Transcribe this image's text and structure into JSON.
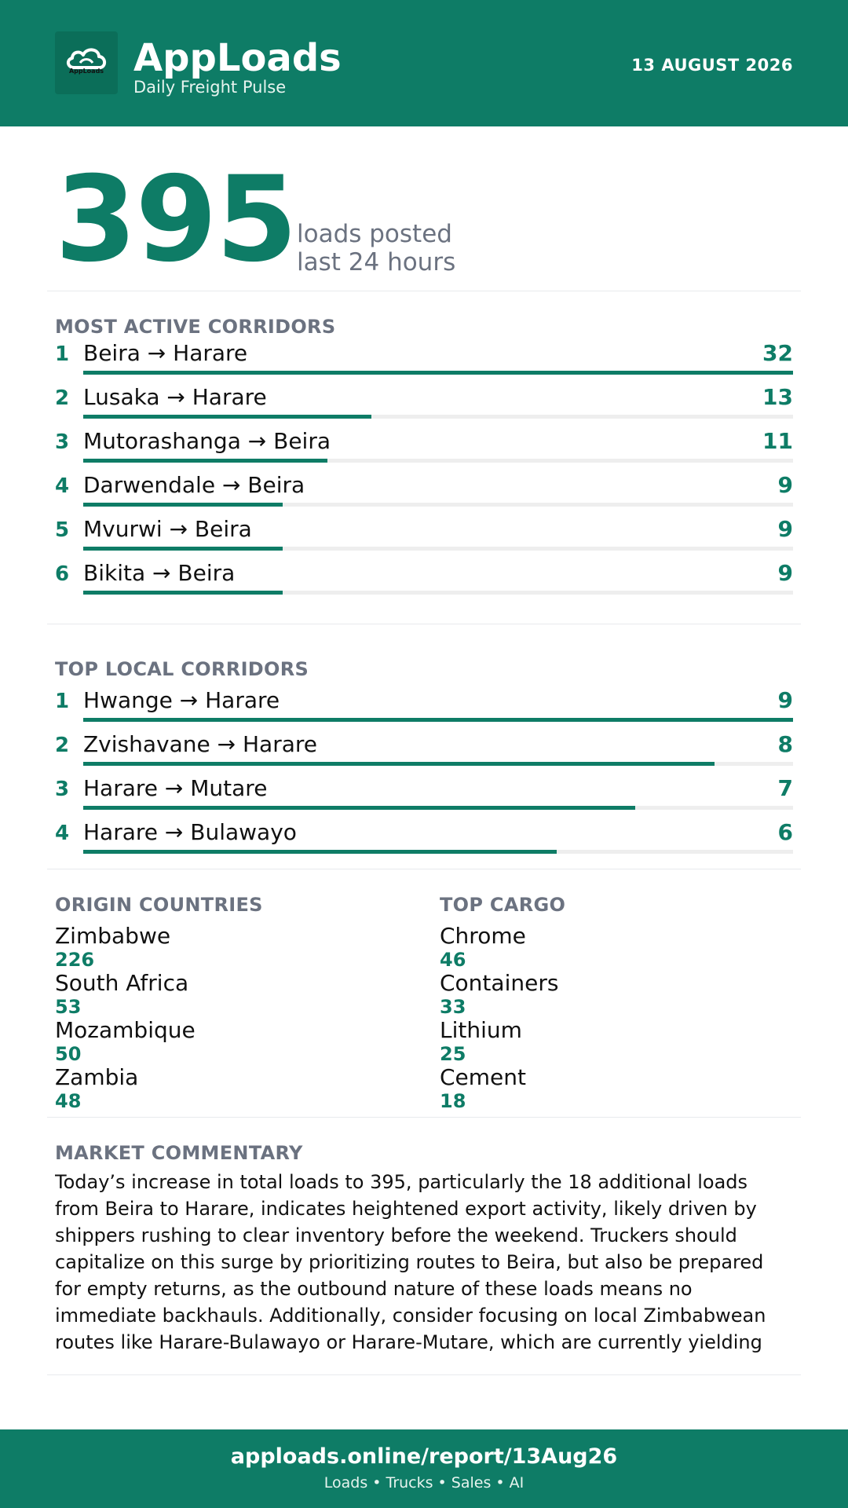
{
  "header": {
    "brand": "AppLoads",
    "tagline": "Daily Freight Pulse",
    "date": "13 AUGUST 2026",
    "logo_text": "AppLoads",
    "accent_color": "#0e7c66"
  },
  "hero": {
    "value": "395",
    "label_line1": "loads posted",
    "label_line2": "last 24 hours"
  },
  "most_active": {
    "title": "MOST ACTIVE CORRIDORS",
    "items": [
      {
        "rank": "1",
        "route": "Beira → Harare",
        "count": "32",
        "value": 32
      },
      {
        "rank": "2",
        "route": "Lusaka → Harare",
        "count": "13",
        "value": 13
      },
      {
        "rank": "3",
        "route": "Mutorashanga → Beira",
        "count": "11",
        "value": 11
      },
      {
        "rank": "4",
        "route": "Darwendale → Beira",
        "count": "9",
        "value": 9
      },
      {
        "rank": "5",
        "route": "Mvurwi → Beira",
        "count": "9",
        "value": 9
      },
      {
        "rank": "6",
        "route": "Bikita → Beira",
        "count": "9",
        "value": 9
      }
    ]
  },
  "top_local": {
    "title": "TOP LOCAL CORRIDORS",
    "items": [
      {
        "rank": "1",
        "route": "Hwange → Harare",
        "count": "9",
        "value": 9
      },
      {
        "rank": "2",
        "route": "Zvishavane → Harare",
        "count": "8",
        "value": 8
      },
      {
        "rank": "3",
        "route": "Harare → Mutare",
        "count": "7",
        "value": 7
      },
      {
        "rank": "4",
        "route": "Harare → Bulawayo",
        "count": "6",
        "value": 6
      }
    ]
  },
  "origin_countries": {
    "title": "ORIGIN COUNTRIES",
    "items": [
      {
        "name": "Zimbabwe",
        "value": "226"
      },
      {
        "name": "South Africa",
        "value": "53"
      },
      {
        "name": "Mozambique",
        "value": "50"
      },
      {
        "name": "Zambia",
        "value": "48"
      }
    ]
  },
  "top_cargo": {
    "title": "TOP CARGO",
    "items": [
      {
        "name": "Chrome",
        "value": "46"
      },
      {
        "name": "Containers",
        "value": "33"
      },
      {
        "name": "Lithium",
        "value": "25"
      },
      {
        "name": "Cement",
        "value": "18"
      }
    ]
  },
  "commentary": {
    "title": "MARKET COMMENTARY",
    "text": "Today’s increase in total loads to 395, particularly the 18 additional loads from Beira to Harare, indicates heightened export activity, likely driven by shippers rushing to clear inventory before the weekend. Truckers should capitalize on this surge by prioritizing routes to Beira, but also be prepared for empty returns, as the outbound nature of these loads means no immediate backhauls. Additionally, consider focusing on local Zimbabwean routes like Harare-Bulawayo or Harare-Mutare, which are currently yielding"
  },
  "footer": {
    "url": "apploads.online/report/13Aug26",
    "sub": "Loads • Trucks • Sales • AI"
  }
}
